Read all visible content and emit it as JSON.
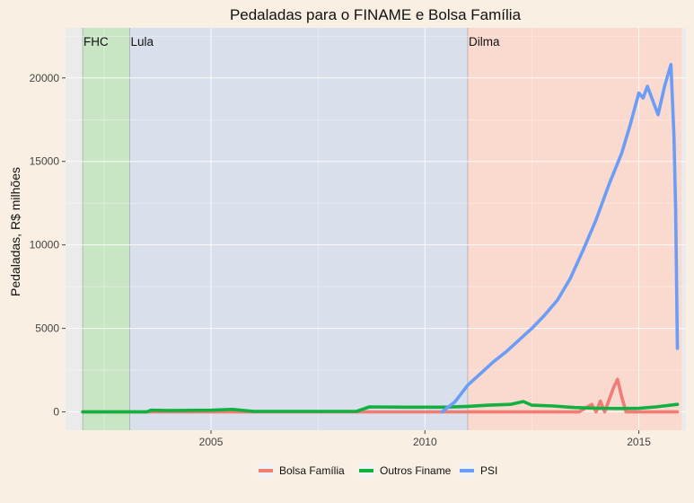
{
  "chart_data": {
    "type": "line",
    "title": "Pedaladas para o FINAME e Bolsa Família",
    "xlabel": "",
    "ylabel": "Pedaladas, R$ milhões",
    "xlim": [
      2001.6,
      2016.1
    ],
    "ylim": [
      -1100,
      23000
    ],
    "xticks": [
      2005,
      2010,
      2015
    ],
    "yticks": [
      0,
      5000,
      10000,
      15000,
      20000
    ],
    "grid": true,
    "legend_position": "bottom",
    "colors": {
      "background": "#f9efe3",
      "FHC": "#c8e6c4",
      "Lula": "#dadfec",
      "Dilma": "#fad9cf",
      "gridline": "#ffffff"
    },
    "periods": [
      {
        "name": "FHC",
        "start": 2002.0,
        "end": 2003.1
      },
      {
        "name": "Lula",
        "start": 2003.1,
        "end": 2011.0
      },
      {
        "name": "Dilma",
        "start": 2011.0,
        "end": 2016.0
      }
    ],
    "series": [
      {
        "name": "Bolsa Família",
        "color": "#f07c74",
        "points": [
          [
            2002.0,
            0
          ],
          [
            2010.6,
            0
          ],
          [
            2012.3,
            0
          ],
          [
            2013.6,
            0
          ],
          [
            2013.9,
            450
          ],
          [
            2014.0,
            0
          ],
          [
            2014.1,
            650
          ],
          [
            2014.2,
            0
          ],
          [
            2014.4,
            1400
          ],
          [
            2014.5,
            1950
          ],
          [
            2014.6,
            900
          ],
          [
            2014.7,
            0
          ],
          [
            2015.9,
            0
          ]
        ]
      },
      {
        "name": "Outros Finame",
        "color": "#10b141",
        "points": [
          [
            2002.0,
            0
          ],
          [
            2003.5,
            0
          ],
          [
            2003.6,
            100
          ],
          [
            2004.0,
            80
          ],
          [
            2005.0,
            100
          ],
          [
            2005.5,
            150
          ],
          [
            2006.0,
            30
          ],
          [
            2008.4,
            30
          ],
          [
            2008.7,
            300
          ],
          [
            2009.5,
            280
          ],
          [
            2010.5,
            280
          ],
          [
            2011.0,
            330
          ],
          [
            2011.5,
            400
          ],
          [
            2012.0,
            450
          ],
          [
            2012.3,
            620
          ],
          [
            2012.5,
            400
          ],
          [
            2013.0,
            350
          ],
          [
            2013.5,
            260
          ],
          [
            2014.0,
            220
          ],
          [
            2014.5,
            200
          ],
          [
            2015.0,
            210
          ],
          [
            2015.4,
            300
          ],
          [
            2015.9,
            450
          ]
        ]
      },
      {
        "name": "PSI",
        "color": "#6b9df6",
        "points": [
          [
            2010.4,
            0
          ],
          [
            2010.7,
            600
          ],
          [
            2011.0,
            1600
          ],
          [
            2011.3,
            2300
          ],
          [
            2011.6,
            3000
          ],
          [
            2011.9,
            3600
          ],
          [
            2012.2,
            4300
          ],
          [
            2012.5,
            5000
          ],
          [
            2012.8,
            5800
          ],
          [
            2013.1,
            6700
          ],
          [
            2013.4,
            8000
          ],
          [
            2013.7,
            9700
          ],
          [
            2014.0,
            11500
          ],
          [
            2014.3,
            13600
          ],
          [
            2014.6,
            15500
          ],
          [
            2014.8,
            17200
          ],
          [
            2015.0,
            19100
          ],
          [
            2015.1,
            18800
          ],
          [
            2015.2,
            19500
          ],
          [
            2015.45,
            17800
          ],
          [
            2015.6,
            19500
          ],
          [
            2015.75,
            20800
          ],
          [
            2015.82,
            16500
          ],
          [
            2015.86,
            12000
          ],
          [
            2015.9,
            3800
          ]
        ]
      }
    ]
  }
}
